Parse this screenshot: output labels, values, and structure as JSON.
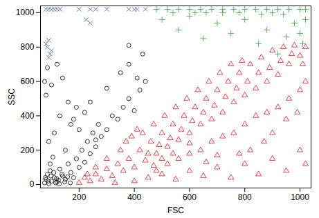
{
  "chart_data": {
    "type": "scatter",
    "x_label": "FSC",
    "y_label": "SSC",
    "xlim": [
      60,
      1040
    ],
    "ylim": [
      -20,
      1040
    ],
    "xticks": [
      200,
      400,
      600,
      800,
      1000
    ],
    "yticks": [
      0,
      200,
      400,
      600,
      800,
      1000
    ],
    "grid": false,
    "series": [
      {
        "color": "#000000",
        "marker": "circle",
        "x": [
          75,
          80,
          85,
          90,
          95,
          100,
          110,
          120,
          130,
          140,
          150,
          160,
          170,
          180,
          190,
          200,
          210,
          220,
          230,
          240,
          250,
          260,
          270,
          280,
          300,
          320,
          340,
          360,
          380,
          400,
          420,
          440,
          90,
          110,
          130,
          150,
          170,
          190,
          80,
          100,
          120,
          140,
          160,
          180,
          200,
          220,
          240,
          260,
          95,
          105,
          115,
          125,
          75,
          85,
          300,
          350,
          380,
          410,
          430,
          380,
          78,
          88,
          98,
          108,
          118,
          128,
          138,
          148,
          158,
          168
        ],
        "y": [
          10,
          30,
          60,
          5,
          80,
          20,
          40,
          15,
          90,
          50,
          30,
          120,
          70,
          40,
          150,
          100,
          200,
          130,
          250,
          180,
          300,
          220,
          350,
          280,
          320,
          400,
          380,
          450,
          500,
          430,
          550,
          600,
          250,
          300,
          400,
          200,
          350,
          450,
          520,
          580,
          700,
          620,
          480,
          380,
          320,
          420,
          480,
          260,
          120,
          160,
          10,
          25,
          600,
          680,
          560,
          650,
          700,
          620,
          760,
          810,
          40,
          20,
          50,
          70,
          35,
          5,
          60,
          15,
          45,
          10
        ]
      },
      {
        "color": "#e8141b",
        "marker": "triangle",
        "x": [
          200,
          220,
          240,
          260,
          280,
          300,
          320,
          340,
          360,
          380,
          400,
          420,
          440,
          460,
          480,
          500,
          520,
          540,
          560,
          580,
          600,
          620,
          640,
          660,
          680,
          700,
          720,
          740,
          760,
          780,
          800,
          820,
          840,
          860,
          880,
          900,
          920,
          940,
          960,
          980,
          1000,
          1020,
          400,
          450,
          500,
          550,
          600,
          650,
          700,
          750,
          800,
          850,
          900,
          950,
          1000,
          1020,
          480,
          520,
          560,
          600,
          640,
          680,
          720,
          760,
          800,
          840,
          880,
          920,
          960,
          1000,
          1020,
          430,
          470,
          510,
          550,
          590,
          630,
          670,
          710,
          750,
          790,
          450,
          490,
          530,
          570,
          610,
          650,
          690,
          730,
          770,
          810,
          850,
          890,
          930,
          970,
          1010,
          350,
          370,
          390,
          410,
          300,
          260,
          230,
          330,
          900,
          950,
          990,
          870,
          820,
          780,
          700,
          660,
          600,
          540,
          500,
          470
        ],
        "y": [
          10,
          40,
          20,
          60,
          30,
          90,
          50,
          120,
          80,
          150,
          100,
          200,
          140,
          250,
          180,
          300,
          220,
          350,
          260,
          400,
          300,
          450,
          350,
          500,
          380,
          550,
          420,
          600,
          480,
          650,
          520,
          700,
          560,
          740,
          600,
          780,
          640,
          800,
          700,
          810,
          750,
          800,
          20,
          40,
          60,
          30,
          80,
          50,
          100,
          40,
          120,
          60,
          150,
          80,
          200,
          120,
          80,
          120,
          150,
          180,
          200,
          250,
          280,
          300,
          350,
          400,
          420,
          450,
          500,
          550,
          600,
          300,
          350,
          400,
          450,
          500,
          550,
          600,
          650,
          700,
          720,
          180,
          230,
          270,
          320,
          370,
          420,
          460,
          510,
          560,
          600,
          650,
          680,
          720,
          760,
          700,
          200,
          250,
          280,
          320,
          150,
          100,
          60,
          10,
          300,
          380,
          420,
          250,
          200,
          180,
          170,
          130,
          240,
          180,
          150,
          110
        ]
      },
      {
        "color": "#2ca62c",
        "marker": "plus",
        "x": [
          480,
          520,
          560,
          600,
          640,
          680,
          720,
          760,
          800,
          840,
          880,
          920,
          960,
          1000,
          1020,
          500,
          560,
          600,
          650,
          700,
          750,
          800,
          850,
          880,
          920,
          950,
          980,
          1000,
          1020,
          1010,
          940,
          720,
          620,
          540,
          900,
          860,
          780,
          660
        ],
        "y": [
          1020,
          1020,
          1020,
          1020,
          1020,
          1020,
          1020,
          1020,
          1020,
          1020,
          1020,
          1020,
          1020,
          1020,
          1020,
          960,
          900,
          980,
          850,
          940,
          880,
          960,
          820,
          900,
          760,
          860,
          940,
          880,
          960,
          820,
          990,
          1000,
          1000,
          1000,
          1000,
          990,
          1000,
          1000
        ]
      },
      {
        "color": "#3a5cb8",
        "marker": "times",
        "x": [
          80,
          90,
          100,
          110,
          120,
          130,
          200,
          240,
          260,
          300,
          380,
          400,
          410,
          440,
          90,
          85,
          95,
          100,
          80,
          225,
          240,
          90
        ],
        "y": [
          1020,
          1020,
          1020,
          1020,
          1020,
          1020,
          1020,
          1020,
          1020,
          1020,
          1020,
          1020,
          1020,
          1020,
          840,
          800,
          760,
          780,
          820,
          960,
          940,
          740
        ]
      }
    ]
  }
}
